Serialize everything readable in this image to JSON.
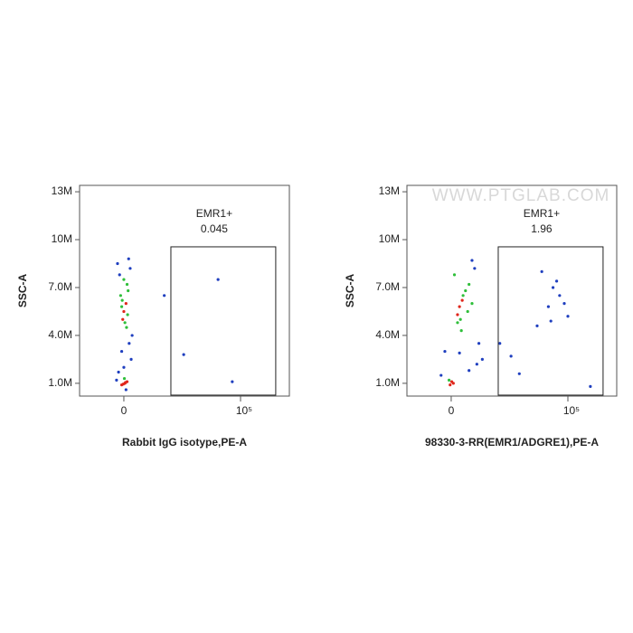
{
  "chart_data": [
    {
      "type": "scatter",
      "x_label": "Rabbit IgG isotype,PE-A",
      "y_label": "SSC-A",
      "x_scale": "biexponential",
      "xlim": [
        -1145,
        2030000
      ],
      "ylim": [
        200000,
        13400000
      ],
      "xticks": [
        0,
        {
          "value": 100000,
          "label": "10⁵"
        }
      ],
      "yticks": [
        {
          "value": 1000000,
          "label": "1.0M"
        },
        {
          "value": 4000000,
          "label": "4.0M"
        },
        {
          "value": 7000000,
          "label": "7.0M"
        },
        {
          "value": 10000000,
          "label": "10M"
        },
        {
          "value": 13000000,
          "label": "13M"
        }
      ],
      "gates": [
        {
          "label": "EMR1+",
          "percent": 0.045,
          "xlim": [
            1359,
            875000
          ],
          "ylim": [
            260000,
            9550000
          ]
        }
      ],
      "series": [
        {
          "color": "#1f3fbf",
          "x": [
            -60,
            60,
            -40,
            50,
            -20,
            70,
            0,
            -50,
            45,
            20,
            -70,
            80,
            900,
            25000,
            3000,
            60000
          ],
          "y": [
            8500000,
            8200000,
            7800000,
            3500000,
            3000000,
            2500000,
            2000000,
            1700000,
            8800000,
            600000,
            1200000,
            4000000,
            6500000,
            7500000,
            2800000,
            1100000
          ]
        },
        {
          "color": "#2fbf3a",
          "x": [
            -30,
            40,
            10,
            -20,
            30,
            0,
            25,
            -15,
            35,
            5
          ],
          "y": [
            6500000,
            6800000,
            4800000,
            5800000,
            7200000,
            7500000,
            4500000,
            6200000,
            5300000,
            1300000
          ]
        },
        {
          "color": "#e0261b",
          "x": [
            -20,
            10,
            30,
            -5,
            15,
            0,
            20,
            -10
          ],
          "y": [
            900000,
            1000000,
            1100000,
            950000,
            1050000,
            5500000,
            6000000,
            5000000
          ]
        }
      ]
    },
    {
      "type": "scatter",
      "x_label": "98330-3-RR(EMR1/ADGRE1),PE-A",
      "y_label": "SSC-A",
      "x_scale": "biexponential",
      "watermark": "WWW.PTGLAB.COM",
      "xlim": [
        -1145,
        2030000
      ],
      "ylim": [
        200000,
        13400000
      ],
      "xticks": [
        0,
        {
          "value": 100000,
          "label": "10⁵"
        }
      ],
      "yticks": [
        {
          "value": 1000000,
          "label": "1.0M"
        },
        {
          "value": 4000000,
          "label": "4.0M"
        },
        {
          "value": 7000000,
          "label": "7.0M"
        },
        {
          "value": 10000000,
          "label": "10M"
        },
        {
          "value": 13000000,
          "label": "13M"
        }
      ],
      "gates": [
        {
          "label": "EMR1+",
          "percent": 1.96,
          "xlim": [
            1359,
            875000
          ],
          "ylim": [
            260000,
            9550000
          ]
        }
      ],
      "series": [
        {
          "color": "#1f3fbf",
          "x": [
            300,
            400,
            -60,
            500,
            350,
            250,
            200,
            80,
            -100,
            20000,
            40000,
            60000,
            30000,
            80000,
            15000,
            50000,
            100000,
            35000,
            3000,
            5000,
            1500,
            400000
          ],
          "y": [
            8200000,
            3500000,
            3000000,
            2500000,
            2200000,
            8700000,
            1800000,
            2900000,
            1500000,
            8000000,
            7000000,
            6500000,
            5800000,
            6000000,
            4600000,
            7400000,
            5200000,
            4900000,
            2700000,
            1600000,
            3500000,
            800000
          ]
        },
        {
          "color": "#2fbf3a",
          "x": [
            150,
            200,
            60,
            90,
            120,
            250,
            30,
            -20,
            180,
            100
          ],
          "y": [
            6800000,
            7200000,
            4800000,
            5000000,
            6500000,
            6000000,
            7800000,
            1200000,
            5500000,
            4300000
          ]
        },
        {
          "color": "#e0261b",
          "x": [
            80,
            110,
            60,
            -10,
            20,
            5
          ],
          "y": [
            5800000,
            6200000,
            5300000,
            900000,
            1000000,
            1100000
          ]
        }
      ]
    }
  ]
}
